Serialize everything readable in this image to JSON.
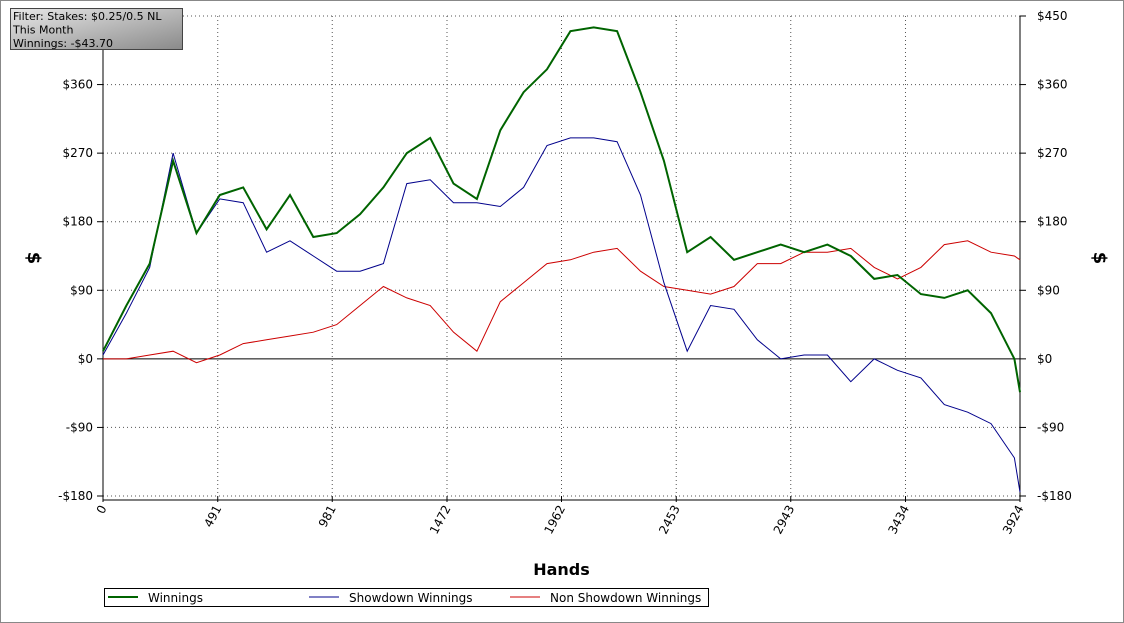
{
  "chart_data": {
    "type": "line",
    "xlabel": "Hands",
    "ylabel": "$",
    "y2label": "$",
    "annotations": [
      "Filter: Stakes: $0.25/0.5 NL",
      "This Month",
      "Winnings: -$43.70"
    ],
    "x": [
      0,
      100,
      200,
      300,
      400,
      500,
      600,
      700,
      800,
      900,
      1000,
      1100,
      1200,
      1300,
      1400,
      1500,
      1600,
      1700,
      1800,
      1900,
      2000,
      2100,
      2200,
      2300,
      2400,
      2500,
      2600,
      2700,
      2800,
      2900,
      3000,
      3100,
      3200,
      3300,
      3400,
      3500,
      3600,
      3700,
      3800,
      3900,
      3924
    ],
    "series": [
      {
        "name": "Winnings",
        "color": "#006400",
        "width": 2,
        "values": [
          10,
          70,
          125,
          260,
          165,
          215,
          225,
          170,
          215,
          160,
          165,
          190,
          225,
          270,
          290,
          230,
          210,
          300,
          350,
          380,
          430,
          435,
          430,
          350,
          260,
          140,
          160,
          130,
          140,
          150,
          140,
          150,
          135,
          105,
          110,
          85,
          80,
          90,
          60,
          0,
          -43.7
        ]
      },
      {
        "name": "Showdown Winnings",
        "color": "#00008b",
        "width": 1,
        "values": [
          5,
          60,
          120,
          270,
          165,
          210,
          205,
          140,
          155,
          135,
          115,
          115,
          125,
          230,
          235,
          205,
          205,
          200,
          225,
          280,
          290,
          290,
          285,
          215,
          100,
          10,
          70,
          65,
          25,
          0,
          5,
          5,
          -30,
          0,
          -15,
          -25,
          -60,
          -70,
          -85,
          -130,
          -175
        ]
      },
      {
        "name": "Non Showdown Winnings",
        "color": "#cc0000",
        "width": 1,
        "values": [
          0,
          0,
          5,
          10,
          -5,
          5,
          20,
          25,
          30,
          35,
          45,
          70,
          95,
          80,
          70,
          35,
          10,
          75,
          100,
          125,
          130,
          140,
          145,
          115,
          95,
          90,
          85,
          95,
          125,
          125,
          140,
          140,
          145,
          120,
          105,
          120,
          150,
          155,
          140,
          135,
          130
        ]
      }
    ],
    "xlim": [
      0,
      3924
    ],
    "xticks": [
      0,
      491,
      981,
      1472,
      1962,
      2453,
      2943,
      3434,
      3924
    ],
    "ylim": [
      -180,
      450
    ],
    "yticks": [
      {
        "value": -180,
        "label": "-$180"
      },
      {
        "value": -90,
        "label": "-$90"
      },
      {
        "value": 0,
        "label": "$0"
      },
      {
        "value": 90,
        "label": "$90"
      },
      {
        "value": 180,
        "label": "$180"
      },
      {
        "value": 270,
        "label": "$270"
      },
      {
        "value": 360,
        "label": "$360"
      },
      {
        "value": 450,
        "label": "$450"
      }
    ],
    "grid": true,
    "legend": "bottom"
  }
}
